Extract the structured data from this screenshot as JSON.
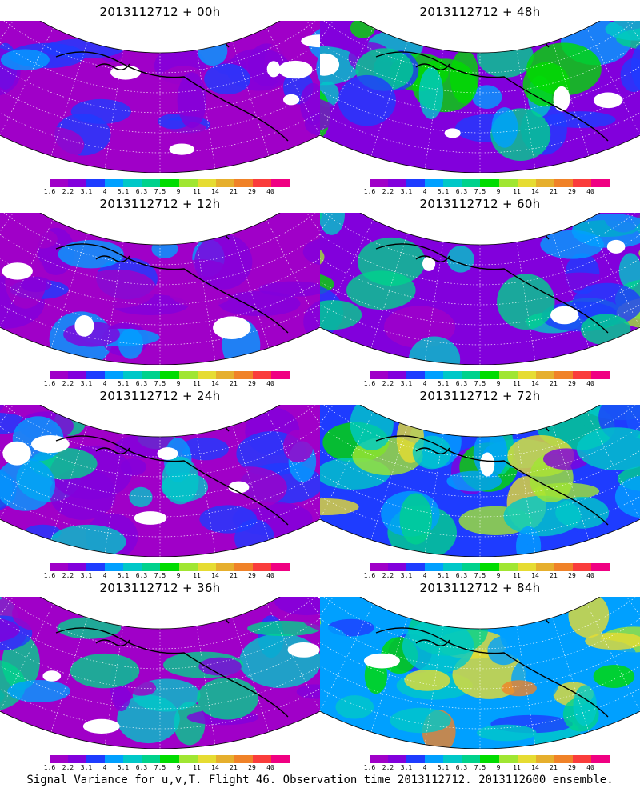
{
  "panels": [
    {
      "title": "2013112712 + 00h",
      "intensity": 0.1
    },
    {
      "title": "2013112712 + 48h",
      "intensity": 0.55
    },
    {
      "title": "2013112712 + 12h",
      "intensity": 0.22
    },
    {
      "title": "2013112712 + 60h",
      "intensity": 0.68
    },
    {
      "title": "2013112712 + 24h",
      "intensity": 0.35
    },
    {
      "title": "2013112712 + 72h",
      "intensity": 0.8
    },
    {
      "title": "2013112712 + 36h",
      "intensity": 0.45
    },
    {
      "title": "2013112712 + 84h",
      "intensity": 0.92
    }
  ],
  "colorbar": {
    "labels": [
      "1.6",
      "2.2",
      "3.1",
      "4",
      "5.1",
      "6.3",
      "7.5",
      "9",
      "11",
      "14",
      "21",
      "29",
      "40"
    ],
    "colors": [
      "#a000c8",
      "#8200dc",
      "#1e3cff",
      "#00a0ff",
      "#00c8c8",
      "#00d28c",
      "#00dc00",
      "#a0e632",
      "#e6dc32",
      "#e6af2d",
      "#f08228",
      "#fa3c3c",
      "#f00082"
    ]
  },
  "caption": "Signal Variance for u,v,T. Flight 46. Observation time 2013112712. 2013112600 ensemble."
}
